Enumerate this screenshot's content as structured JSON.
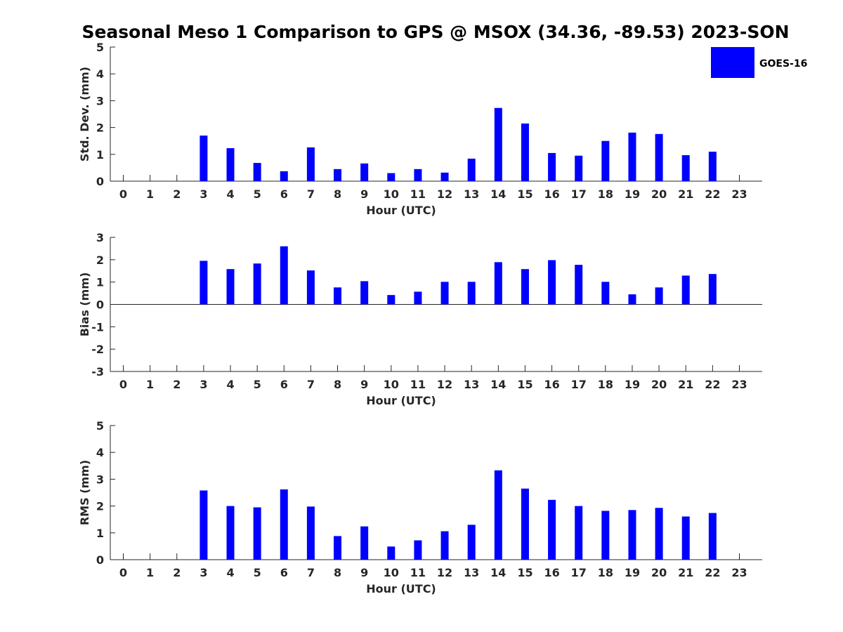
{
  "title": "Seasonal Meso 1 Comparison to GPS @ MSOX (34.36, -89.53) 2023-SON",
  "legend": {
    "label": "GOES-16"
  },
  "colors": {
    "bar": "#0000ff",
    "axis": "#262626"
  },
  "chart_data": [
    {
      "type": "bar",
      "xlabel": "Hour (UTC)",
      "ylabel": "Std. Dev. (mm)",
      "ylim": [
        0,
        5
      ],
      "yticks": [
        0,
        1,
        2,
        3,
        4,
        5
      ],
      "categories": [
        "0",
        "1",
        "2",
        "3",
        "4",
        "5",
        "6",
        "7",
        "8",
        "9",
        "10",
        "11",
        "12",
        "13",
        "14",
        "15",
        "16",
        "17",
        "18",
        "19",
        "20",
        "21",
        "22",
        "23"
      ],
      "series": [
        {
          "name": "GOES-16",
          "values": [
            null,
            null,
            null,
            1.7,
            1.23,
            0.68,
            0.37,
            1.26,
            0.45,
            0.66,
            0.3,
            0.45,
            0.32,
            0.84,
            2.73,
            2.15,
            1.05,
            0.95,
            1.5,
            1.81,
            1.76,
            0.97,
            1.1,
            null
          ]
        }
      ]
    },
    {
      "type": "bar",
      "xlabel": "Hour (UTC)",
      "ylabel": "Bias (mm)",
      "ylim": [
        -3,
        3
      ],
      "yticks": [
        -3,
        -2,
        -1,
        0,
        1,
        2,
        3
      ],
      "zero_line": true,
      "categories": [
        "0",
        "1",
        "2",
        "3",
        "4",
        "5",
        "6",
        "7",
        "8",
        "9",
        "10",
        "11",
        "12",
        "13",
        "14",
        "15",
        "16",
        "17",
        "18",
        "19",
        "20",
        "21",
        "22",
        "23"
      ],
      "series": [
        {
          "name": "GOES-16",
          "values": [
            null,
            null,
            null,
            1.95,
            1.58,
            1.83,
            2.6,
            1.52,
            0.76,
            1.04,
            0.42,
            0.57,
            1.01,
            1.01,
            1.89,
            1.58,
            1.98,
            1.77,
            1.01,
            0.45,
            0.76,
            1.29,
            1.36,
            null
          ]
        }
      ]
    },
    {
      "type": "bar",
      "xlabel": "Hour (UTC)",
      "ylabel": "RMS (mm)",
      "ylim": [
        0,
        5
      ],
      "yticks": [
        0,
        1,
        2,
        3,
        4,
        5
      ],
      "categories": [
        "0",
        "1",
        "2",
        "3",
        "4",
        "5",
        "6",
        "7",
        "8",
        "9",
        "10",
        "11",
        "12",
        "13",
        "14",
        "15",
        "16",
        "17",
        "18",
        "19",
        "20",
        "21",
        "22",
        "23"
      ],
      "series": [
        {
          "name": "GOES-16",
          "values": [
            null,
            null,
            null,
            2.58,
            2.0,
            1.95,
            2.62,
            1.98,
            0.88,
            1.24,
            0.49,
            0.72,
            1.06,
            1.3,
            3.33,
            2.65,
            2.23,
            2.0,
            1.82,
            1.85,
            1.93,
            1.61,
            1.74,
            null
          ]
        }
      ]
    }
  ]
}
